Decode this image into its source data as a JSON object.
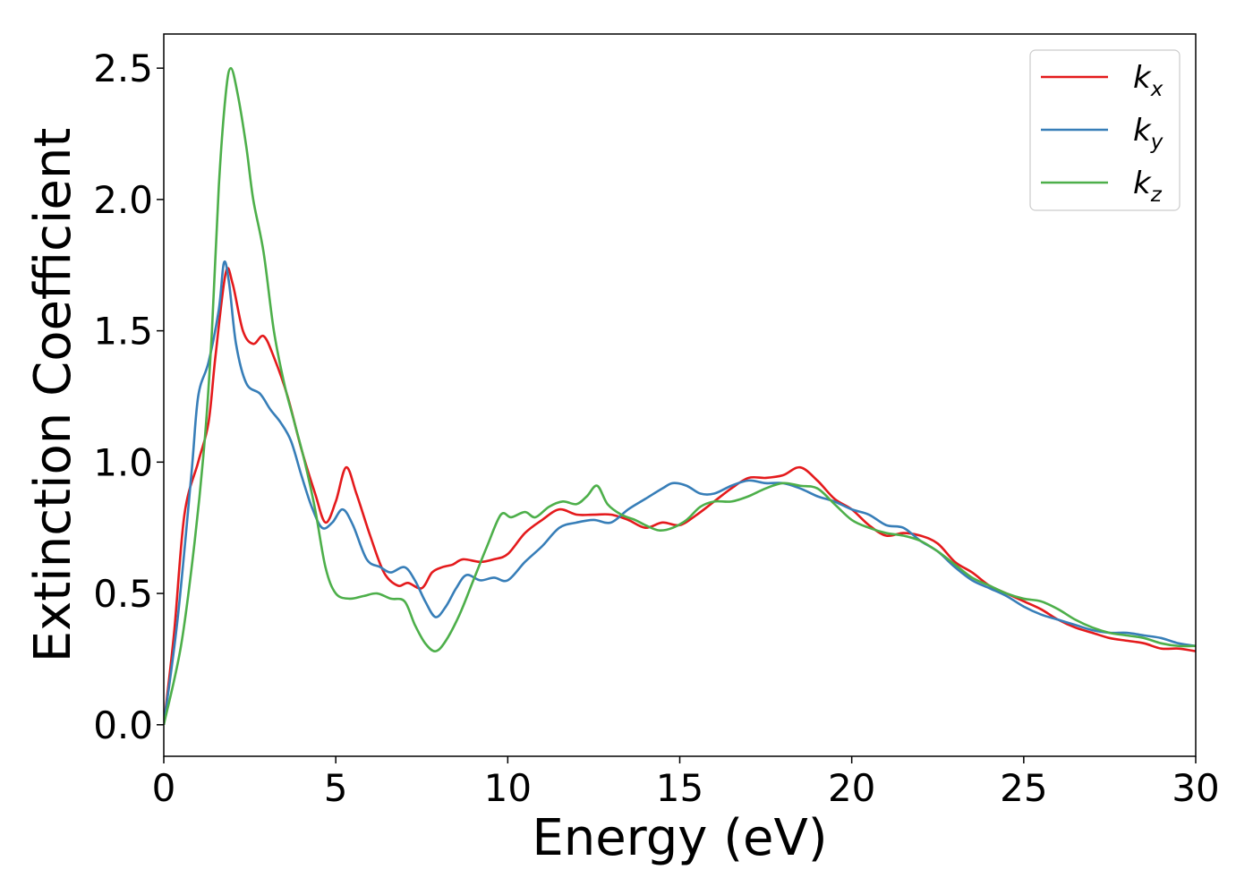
{
  "chart_data": {
    "type": "line",
    "title": "",
    "xlabel": "Energy (eV)",
    "ylabel": "Extinction Coefficient",
    "xlim": [
      0,
      30
    ],
    "ylim": [
      -0.12,
      2.63
    ],
    "xticks": [
      0,
      5,
      10,
      15,
      20,
      25,
      30
    ],
    "xtick_labels": [
      "0",
      "5",
      "10",
      "15",
      "20",
      "25",
      "30"
    ],
    "yticks": [
      0.0,
      0.5,
      1.0,
      1.5,
      2.0,
      2.5
    ],
    "ytick_labels": [
      "0.0",
      "0.5",
      "1.0",
      "1.5",
      "2.0",
      "2.5"
    ],
    "grid": false,
    "legend_position": "top-right",
    "series": [
      {
        "name": "k_x",
        "legend_main": "k",
        "legend_sub": "x",
        "color": "#e41a1c",
        "points": [
          [
            0,
            0.0
          ],
          [
            0.3,
            0.35
          ],
          [
            0.6,
            0.8
          ],
          [
            1.0,
            1.0
          ],
          [
            1.3,
            1.15
          ],
          [
            1.5,
            1.4
          ],
          [
            1.8,
            1.72
          ],
          [
            2.0,
            1.68
          ],
          [
            2.3,
            1.5
          ],
          [
            2.6,
            1.45
          ],
          [
            2.9,
            1.48
          ],
          [
            3.2,
            1.4
          ],
          [
            3.6,
            1.25
          ],
          [
            4.0,
            1.05
          ],
          [
            4.4,
            0.88
          ],
          [
            4.7,
            0.77
          ],
          [
            5.0,
            0.85
          ],
          [
            5.3,
            0.98
          ],
          [
            5.6,
            0.88
          ],
          [
            6.0,
            0.72
          ],
          [
            6.4,
            0.58
          ],
          [
            6.8,
            0.53
          ],
          [
            7.1,
            0.54
          ],
          [
            7.5,
            0.52
          ],
          [
            7.8,
            0.58
          ],
          [
            8.1,
            0.6
          ],
          [
            8.4,
            0.61
          ],
          [
            8.7,
            0.63
          ],
          [
            9.2,
            0.62
          ],
          [
            9.6,
            0.63
          ],
          [
            10.0,
            0.65
          ],
          [
            10.5,
            0.73
          ],
          [
            11.0,
            0.78
          ],
          [
            11.5,
            0.82
          ],
          [
            12.0,
            0.8
          ],
          [
            12.5,
            0.8
          ],
          [
            13.0,
            0.8
          ],
          [
            13.5,
            0.78
          ],
          [
            14.0,
            0.75
          ],
          [
            14.5,
            0.77
          ],
          [
            15.0,
            0.76
          ],
          [
            15.5,
            0.8
          ],
          [
            16.0,
            0.85
          ],
          [
            16.5,
            0.9
          ],
          [
            17.0,
            0.94
          ],
          [
            17.5,
            0.94
          ],
          [
            18.0,
            0.95
          ],
          [
            18.5,
            0.98
          ],
          [
            19.0,
            0.93
          ],
          [
            19.5,
            0.86
          ],
          [
            20.0,
            0.82
          ],
          [
            20.5,
            0.76
          ],
          [
            21.0,
            0.72
          ],
          [
            21.5,
            0.73
          ],
          [
            22.0,
            0.72
          ],
          [
            22.5,
            0.69
          ],
          [
            23.0,
            0.62
          ],
          [
            23.5,
            0.58
          ],
          [
            24.0,
            0.53
          ],
          [
            24.5,
            0.5
          ],
          [
            25.0,
            0.47
          ],
          [
            25.5,
            0.44
          ],
          [
            26.0,
            0.4
          ],
          [
            26.5,
            0.37
          ],
          [
            27.0,
            0.35
          ],
          [
            27.5,
            0.33
          ],
          [
            28.0,
            0.32
          ],
          [
            28.5,
            0.31
          ],
          [
            29.0,
            0.29
          ],
          [
            29.5,
            0.29
          ],
          [
            30.0,
            0.28
          ]
        ]
      },
      {
        "name": "k_y",
        "legend_main": "k",
        "legend_sub": "y",
        "color": "#377eb8",
        "points": [
          [
            0,
            0.0
          ],
          [
            0.4,
            0.4
          ],
          [
            0.8,
            0.95
          ],
          [
            1.0,
            1.25
          ],
          [
            1.3,
            1.38
          ],
          [
            1.6,
            1.58
          ],
          [
            1.75,
            1.76
          ],
          [
            1.9,
            1.68
          ],
          [
            2.1,
            1.45
          ],
          [
            2.4,
            1.3
          ],
          [
            2.8,
            1.26
          ],
          [
            3.1,
            1.2
          ],
          [
            3.4,
            1.15
          ],
          [
            3.7,
            1.08
          ],
          [
            4.0,
            0.95
          ],
          [
            4.3,
            0.83
          ],
          [
            4.6,
            0.75
          ],
          [
            4.9,
            0.77
          ],
          [
            5.2,
            0.82
          ],
          [
            5.5,
            0.76
          ],
          [
            5.9,
            0.63
          ],
          [
            6.3,
            0.6
          ],
          [
            6.6,
            0.58
          ],
          [
            7.0,
            0.6
          ],
          [
            7.3,
            0.55
          ],
          [
            7.6,
            0.47
          ],
          [
            7.9,
            0.41
          ],
          [
            8.2,
            0.45
          ],
          [
            8.5,
            0.52
          ],
          [
            8.8,
            0.57
          ],
          [
            9.2,
            0.55
          ],
          [
            9.6,
            0.56
          ],
          [
            10.0,
            0.55
          ],
          [
            10.5,
            0.62
          ],
          [
            11.0,
            0.68
          ],
          [
            11.5,
            0.75
          ],
          [
            12.0,
            0.77
          ],
          [
            12.5,
            0.78
          ],
          [
            13.0,
            0.77
          ],
          [
            13.5,
            0.82
          ],
          [
            14.0,
            0.86
          ],
          [
            14.5,
            0.9
          ],
          [
            14.8,
            0.92
          ],
          [
            15.2,
            0.91
          ],
          [
            15.6,
            0.88
          ],
          [
            16.0,
            0.88
          ],
          [
            16.5,
            0.91
          ],
          [
            17.0,
            0.93
          ],
          [
            17.5,
            0.92
          ],
          [
            18.0,
            0.92
          ],
          [
            18.5,
            0.9
          ],
          [
            19.0,
            0.87
          ],
          [
            19.5,
            0.85
          ],
          [
            20.0,
            0.82
          ],
          [
            20.5,
            0.8
          ],
          [
            21.0,
            0.76
          ],
          [
            21.5,
            0.75
          ],
          [
            22.0,
            0.7
          ],
          [
            22.5,
            0.66
          ],
          [
            23.0,
            0.6
          ],
          [
            23.5,
            0.55
          ],
          [
            24.0,
            0.52
          ],
          [
            24.5,
            0.49
          ],
          [
            25.0,
            0.45
          ],
          [
            25.5,
            0.42
          ],
          [
            26.0,
            0.4
          ],
          [
            26.5,
            0.38
          ],
          [
            27.0,
            0.36
          ],
          [
            27.5,
            0.35
          ],
          [
            28.0,
            0.35
          ],
          [
            28.5,
            0.34
          ],
          [
            29.0,
            0.33
          ],
          [
            29.5,
            0.31
          ],
          [
            30.0,
            0.3
          ]
        ]
      },
      {
        "name": "k_z",
        "legend_main": "k",
        "legend_sub": "z",
        "color": "#4daf4a",
        "points": [
          [
            0,
            0.0
          ],
          [
            0.5,
            0.3
          ],
          [
            0.9,
            0.7
          ],
          [
            1.2,
            1.1
          ],
          [
            1.4,
            1.5
          ],
          [
            1.6,
            2.05
          ],
          [
            1.8,
            2.4
          ],
          [
            1.95,
            2.5
          ],
          [
            2.15,
            2.4
          ],
          [
            2.4,
            2.2
          ],
          [
            2.6,
            2.0
          ],
          [
            2.9,
            1.8
          ],
          [
            3.2,
            1.5
          ],
          [
            3.5,
            1.3
          ],
          [
            3.8,
            1.15
          ],
          [
            4.1,
            1.0
          ],
          [
            4.4,
            0.82
          ],
          [
            4.7,
            0.6
          ],
          [
            5.0,
            0.5
          ],
          [
            5.4,
            0.48
          ],
          [
            5.8,
            0.49
          ],
          [
            6.2,
            0.5
          ],
          [
            6.6,
            0.48
          ],
          [
            7.0,
            0.47
          ],
          [
            7.3,
            0.38
          ],
          [
            7.6,
            0.31
          ],
          [
            7.9,
            0.28
          ],
          [
            8.2,
            0.32
          ],
          [
            8.6,
            0.42
          ],
          [
            9.0,
            0.55
          ],
          [
            9.4,
            0.68
          ],
          [
            9.8,
            0.8
          ],
          [
            10.1,
            0.79
          ],
          [
            10.5,
            0.81
          ],
          [
            10.8,
            0.79
          ],
          [
            11.2,
            0.83
          ],
          [
            11.6,
            0.85
          ],
          [
            12.0,
            0.84
          ],
          [
            12.3,
            0.87
          ],
          [
            12.6,
            0.91
          ],
          [
            12.9,
            0.84
          ],
          [
            13.3,
            0.8
          ],
          [
            13.7,
            0.78
          ],
          [
            14.0,
            0.76
          ],
          [
            14.4,
            0.74
          ],
          [
            14.8,
            0.75
          ],
          [
            15.2,
            0.78
          ],
          [
            15.6,
            0.83
          ],
          [
            16.0,
            0.85
          ],
          [
            16.5,
            0.85
          ],
          [
            17.0,
            0.87
          ],
          [
            17.5,
            0.9
          ],
          [
            18.0,
            0.92
          ],
          [
            18.5,
            0.91
          ],
          [
            19.0,
            0.9
          ],
          [
            19.5,
            0.84
          ],
          [
            20.0,
            0.78
          ],
          [
            20.5,
            0.75
          ],
          [
            21.0,
            0.73
          ],
          [
            21.5,
            0.72
          ],
          [
            22.0,
            0.7
          ],
          [
            22.5,
            0.66
          ],
          [
            23.0,
            0.61
          ],
          [
            23.5,
            0.56
          ],
          [
            24.0,
            0.53
          ],
          [
            24.5,
            0.5
          ],
          [
            25.0,
            0.48
          ],
          [
            25.5,
            0.47
          ],
          [
            26.0,
            0.44
          ],
          [
            26.5,
            0.4
          ],
          [
            27.0,
            0.37
          ],
          [
            27.5,
            0.35
          ],
          [
            28.0,
            0.34
          ],
          [
            28.5,
            0.33
          ],
          [
            29.0,
            0.31
          ],
          [
            29.5,
            0.3
          ],
          [
            30.0,
            0.3
          ]
        ]
      }
    ]
  }
}
